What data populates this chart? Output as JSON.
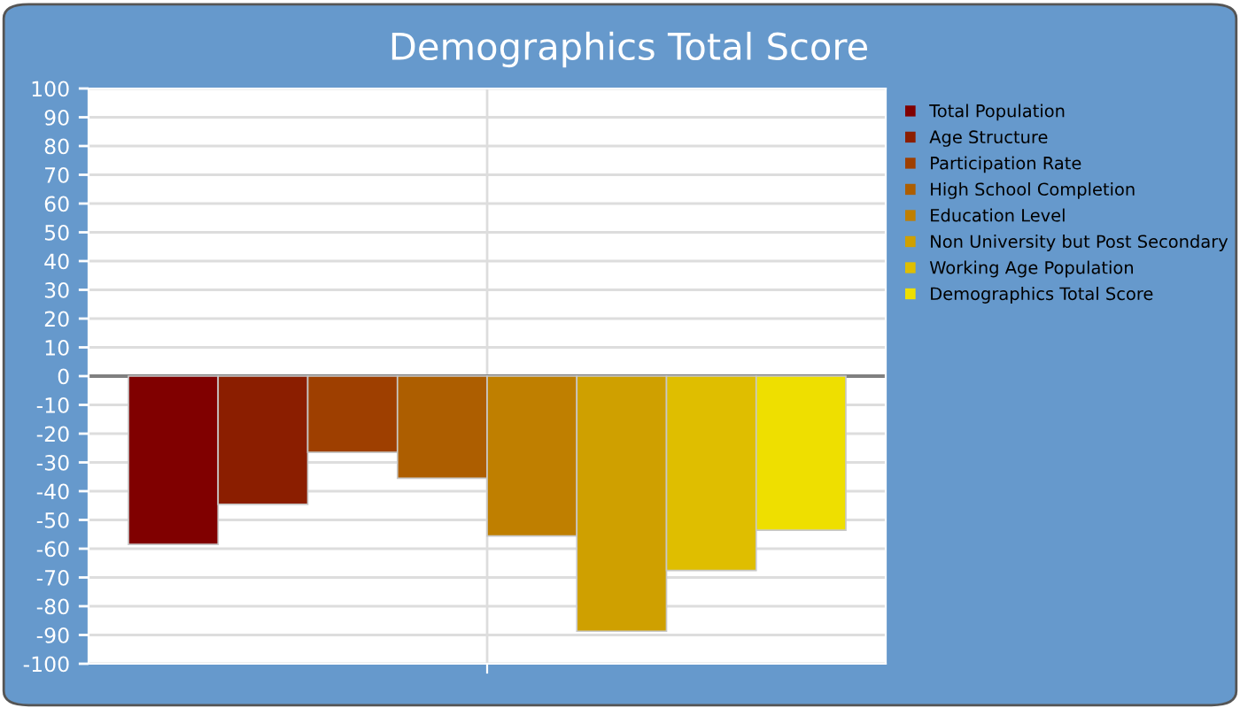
{
  "chart_data": {
    "type": "bar",
    "title": "Demographics Total Score",
    "categories": [
      null
    ],
    "series": [
      {
        "name": "Total Population",
        "color": "#800000",
        "values": [
          -58.5
        ]
      },
      {
        "name": "Age Structure",
        "color": "#8b1e00",
        "values": [
          -44.6
        ]
      },
      {
        "name": "Participation Rate",
        "color": "#9e3f00",
        "values": [
          -26.5
        ]
      },
      {
        "name": "High School Completion",
        "color": "#ad5e00",
        "values": [
          -35.5
        ]
      },
      {
        "name": "Education Level",
        "color": "#bf7f00",
        "values": [
          -55.6
        ]
      },
      {
        "name": "Non University but Post Secondary",
        "color": "#cfa000",
        "values": [
          -88.7
        ]
      },
      {
        "name": "Working Age Population",
        "color": "#dfbe00",
        "values": [
          -67.6
        ]
      },
      {
        "name": "Demographics Total Score",
        "color": "#eedf00",
        "values": [
          -53.6
        ]
      }
    ],
    "ylim": [
      -100,
      100
    ],
    "yticks": [
      -100,
      -90,
      -80,
      -70,
      -60,
      -50,
      -40,
      -30,
      -20,
      -10,
      0,
      10,
      20,
      30,
      40,
      50,
      60,
      70,
      80,
      90,
      100
    ],
    "ref_lines": [
      {
        "axis": "y",
        "value": 0,
        "color": "#808080"
      }
    ],
    "grid": true,
    "legend": "right",
    "tick_labels": "y"
  }
}
